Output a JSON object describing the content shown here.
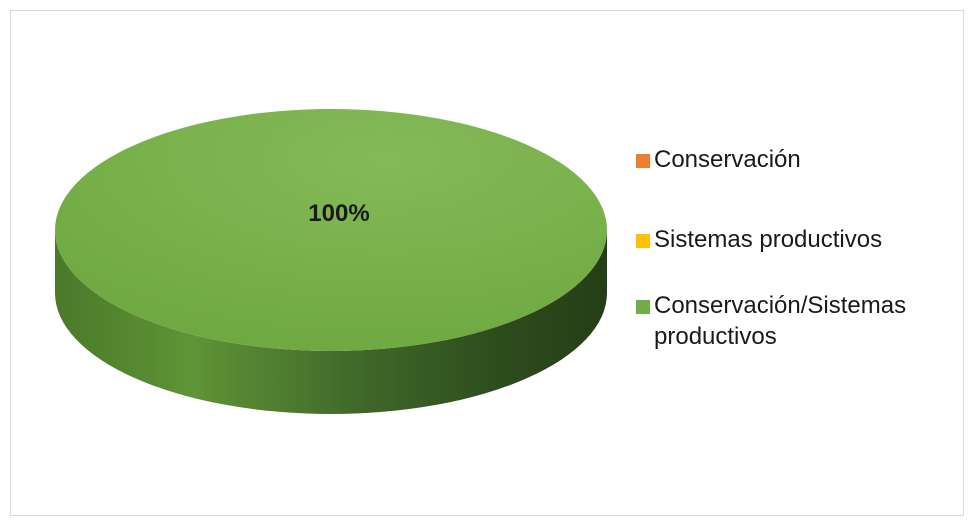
{
  "chart_data": {
    "type": "pie",
    "style": "3d",
    "slices": [
      {
        "label": "Conservación",
        "value": 0,
        "color": "#ED7D31"
      },
      {
        "label": "Sistemas productivos",
        "value": 0,
        "color": "#FFC000"
      },
      {
        "label": "Conservación/Sistemas productivos",
        "value": 100,
        "color": "#70AD47"
      }
    ],
    "data_labels": [
      "",
      "",
      "100%"
    ],
    "legend_position": "right"
  }
}
